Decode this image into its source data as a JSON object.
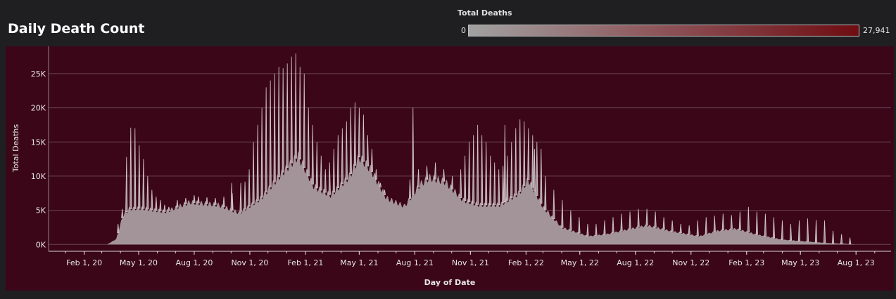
{
  "header": {
    "title": "Daily Death Count"
  },
  "legend": {
    "title": "Total Deaths",
    "min_label": "0",
    "max_label": "27,941",
    "color_low": "#a2a2a2",
    "color_high": "#6e0d12"
  },
  "colors": {
    "page_bg": "#1f1f22",
    "plot_bg": "#3b0618",
    "area_fill": "#a3949a",
    "spike_line": "#d5c9ce",
    "gridline": "#6a4453",
    "axis_text": "#e6e6e6"
  },
  "chart_data": {
    "type": "area",
    "title": "Daily Death Count",
    "xlabel": "Day of Date",
    "ylabel": "Total Deaths",
    "ylim": [
      -1000,
      29000
    ],
    "xlim": [
      "2019-12-04",
      "2023-09-28"
    ],
    "grid": true,
    "y_ticks": [
      0,
      5000,
      10000,
      15000,
      20000,
      25000
    ],
    "y_tick_labels": [
      "0K",
      "5K",
      "10K",
      "15K",
      "20K",
      "25K"
    ],
    "x_ticks": [
      "2020-02-01",
      "2020-05-01",
      "2020-08-01",
      "2020-11-01",
      "2021-02-01",
      "2021-05-01",
      "2021-08-01",
      "2021-11-01",
      "2022-02-01",
      "2022-05-01",
      "2022-08-01",
      "2022-11-01",
      "2023-02-01",
      "2023-05-01",
      "2023-08-01"
    ],
    "x_tick_labels": [
      "Feb 1, 20",
      "May 1, 20",
      "Aug 1, 20",
      "Nov 1, 20",
      "Feb 1, 21",
      "May 1, 21",
      "Aug 1, 21",
      "Nov 1, 21",
      "Feb 1, 22",
      "May 1, 22",
      "Aug 1, 22",
      "Nov 1, 22",
      "Feb 1, 23",
      "May 1, 23",
      "Aug 1, 23"
    ],
    "baseline": {
      "dates": [
        "2019-12-31",
        "2020-03-10",
        "2020-03-25",
        "2020-04-05",
        "2020-04-15",
        "2020-05-05",
        "2020-06-15",
        "2020-07-25",
        "2020-09-10",
        "2020-10-15",
        "2020-11-20",
        "2020-12-20",
        "2021-01-20",
        "2021-02-15",
        "2021-03-15",
        "2021-04-15",
        "2021-05-01",
        "2021-05-20",
        "2021-06-15",
        "2021-07-15",
        "2021-08-10",
        "2021-08-25",
        "2021-09-20",
        "2021-10-20",
        "2021-11-15",
        "2021-12-20",
        "2022-01-20",
        "2022-02-05",
        "2022-03-01",
        "2022-04-01",
        "2022-05-15",
        "2022-06-15",
        "2022-07-20",
        "2022-08-20",
        "2022-10-01",
        "2022-11-15",
        "2022-12-15",
        "2023-01-15",
        "2023-02-15",
        "2023-04-01",
        "2023-05-15",
        "2023-06-15",
        "2023-07-15",
        "2023-08-01"
      ],
      "values": [
        0,
        0,
        800,
        4200,
        5200,
        5300,
        4800,
        6200,
        5800,
        4600,
        6800,
        10000,
        13000,
        8500,
        7200,
        10000,
        12800,
        11000,
        6800,
        5600,
        8800,
        9800,
        9200,
        6500,
        5800,
        5800,
        7500,
        9500,
        5500,
        2500,
        1200,
        1500,
        2200,
        2800,
        1900,
        1200,
        2000,
        2300,
        1500,
        700,
        400,
        200,
        100,
        0
      ]
    },
    "spikes": {
      "dates": [
        "2020-03-28",
        "2020-04-04",
        "2020-04-11",
        "2020-04-18",
        "2020-04-25",
        "2020-05-02",
        "2020-05-09",
        "2020-05-16",
        "2020-05-23",
        "2020-05-30",
        "2020-06-06",
        "2020-06-13",
        "2020-06-20",
        "2020-07-04",
        "2020-07-18",
        "2020-08-01",
        "2020-08-08",
        "2020-08-22",
        "2020-09-05",
        "2020-09-19",
        "2020-10-03",
        "2020-10-17",
        "2020-10-24",
        "2020-10-31",
        "2020-11-07",
        "2020-11-14",
        "2020-11-21",
        "2020-11-28",
        "2020-12-05",
        "2020-12-12",
        "2020-12-19",
        "2020-12-26",
        "2021-01-02",
        "2021-01-09",
        "2021-01-16",
        "2021-01-23",
        "2021-01-30",
        "2021-02-06",
        "2021-02-13",
        "2021-02-20",
        "2021-02-27",
        "2021-03-06",
        "2021-03-13",
        "2021-03-20",
        "2021-03-27",
        "2021-04-03",
        "2021-04-10",
        "2021-04-17",
        "2021-04-24",
        "2021-05-01",
        "2021-05-08",
        "2021-05-15",
        "2021-05-22",
        "2021-05-29",
        "2021-06-05",
        "2021-06-12",
        "2021-07-24",
        "2021-08-07",
        "2021-08-21",
        "2021-09-04",
        "2021-09-18",
        "2021-10-02",
        "2021-10-16",
        "2021-10-23",
        "2021-10-30",
        "2021-11-06",
        "2021-11-13",
        "2021-11-20",
        "2021-11-27",
        "2021-12-04",
        "2021-12-11",
        "2021-12-18",
        "2021-12-25",
        "2022-01-01",
        "2022-01-08",
        "2022-01-15",
        "2022-01-22",
        "2022-01-29",
        "2022-02-05",
        "2022-02-12",
        "2022-02-19",
        "2022-02-26",
        "2022-03-05",
        "2022-03-19",
        "2022-04-02",
        "2022-04-16",
        "2022-04-30",
        "2022-05-14",
        "2022-05-28",
        "2022-06-11",
        "2022-06-25",
        "2022-07-09",
        "2022-07-23",
        "2022-08-06",
        "2022-08-20",
        "2022-09-03",
        "2022-09-17",
        "2022-10-01",
        "2022-10-15",
        "2022-10-29",
        "2022-11-12",
        "2022-11-26",
        "2022-12-10",
        "2022-12-24",
        "2023-01-07",
        "2023-01-21",
        "2023-02-04",
        "2023-02-18",
        "2023-03-04",
        "2023-03-18",
        "2023-04-01",
        "2023-04-15",
        "2023-04-29",
        "2023-05-13",
        "2023-05-27",
        "2023-06-10",
        "2023-06-24",
        "2023-07-08",
        "2023-07-22"
      ],
      "values": [
        3000,
        5200,
        12800,
        17100,
        17000,
        14500,
        12500,
        10000,
        8000,
        7000,
        6500,
        5800,
        5500,
        6500,
        6800,
        7200,
        7000,
        6900,
        6800,
        7000,
        7500,
        9000,
        9200,
        11000,
        15000,
        17500,
        20000,
        23000,
        24000,
        25000,
        26000,
        25800,
        26500,
        27500,
        27941,
        26000,
        25000,
        20000,
        17500,
        15000,
        13000,
        11000,
        12000,
        14000,
        16000,
        17000,
        18000,
        20000,
        20800,
        20000,
        19000,
        16000,
        14000,
        11000,
        9000,
        8000,
        9500,
        11000,
        11500,
        12000,
        11000,
        10000,
        11000,
        13000,
        15000,
        16000,
        17500,
        16000,
        15000,
        13000,
        12000,
        11000,
        11500,
        13000,
        15000,
        17000,
        18300,
        18000,
        17000,
        16000,
        15000,
        14000,
        10000,
        8000,
        6500,
        5000,
        4000,
        3000,
        3000,
        3500,
        4000,
        4500,
        4800,
        5200,
        5200,
        4800,
        4000,
        3500,
        3000,
        2800,
        3500,
        4000,
        4200,
        4500,
        4300,
        4800,
        5500,
        4800,
        4500,
        4000,
        3500,
        3000,
        3500,
        3800,
        3600,
        3500,
        2000,
        1500,
        1000
      ]
    },
    "extra_spikes": {
      "dates": [
        "2020-10-02",
        "2021-07-29",
        "2021-12-28",
        "2022-02-15"
      ],
      "values": [
        9000,
        20000,
        17500,
        14000
      ]
    }
  }
}
